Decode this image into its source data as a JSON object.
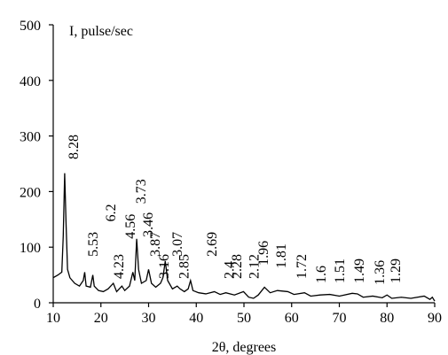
{
  "chart_data": {
    "type": "line",
    "y_label": "I, pulse/sec",
    "x_label": "2θ, degrees",
    "color": "#000000",
    "xlim": [
      10,
      90
    ],
    "xticks": [
      10,
      20,
      30,
      40,
      50,
      60,
      70,
      80,
      90
    ],
    "ylim": [
      0,
      500
    ],
    "yticks": [
      0,
      100,
      200,
      300,
      400,
      500
    ],
    "x": [
      10,
      11,
      11.8,
      12.1,
      12.4,
      12.7,
      13.0,
      13.5,
      14.5,
      15.5,
      16.3,
      16.6,
      16.9,
      17.8,
      18.3,
      18.6,
      19.5,
      20.5,
      21.5,
      22.6,
      23.3,
      24.4,
      25.0,
      26.0,
      26.7,
      27.1,
      27.5,
      27.9,
      28.5,
      29.5,
      30.0,
      30.6,
      31.5,
      32.5,
      33.0,
      33.5,
      34.0,
      35.0,
      36.0,
      36.6,
      37.5,
      38.3,
      38.8,
      39.3,
      40.5,
      42,
      43.8,
      45,
      46.2,
      48,
      49.9,
      51,
      52,
      53,
      54.3,
      55.5,
      57,
      59.2,
      60.5,
      62.7,
      64,
      66,
      68,
      70,
      72.7,
      73.8,
      75,
      77,
      79,
      80,
      81,
      83,
      85,
      87.8,
      89,
      89.5,
      90
    ],
    "values": [
      45,
      50,
      55,
      120,
      233,
      140,
      60,
      45,
      35,
      30,
      40,
      55,
      30,
      28,
      50,
      30,
      22,
      20,
      25,
      35,
      20,
      30,
      22,
      30,
      55,
      40,
      115,
      60,
      35,
      40,
      60,
      35,
      28,
      35,
      45,
      75,
      40,
      25,
      30,
      25,
      20,
      25,
      40,
      22,
      18,
      16,
      20,
      15,
      18,
      14,
      20,
      10,
      8,
      14,
      28,
      18,
      22,
      20,
      15,
      18,
      12,
      14,
      15,
      12,
      17,
      16,
      10,
      12,
      9,
      14,
      8,
      10,
      8,
      12,
      6,
      10,
      3
    ],
    "annotations": [
      {
        "text": "8.28",
        "x": 14.1,
        "y": 258
      },
      {
        "text": "6.2",
        "x": 21.9,
        "y": 146
      },
      {
        "text": "5.53",
        "x": 18.2,
        "y": 83
      },
      {
        "text": "4.56",
        "x": 26.0,
        "y": 115
      },
      {
        "text": "4.23",
        "x": 23.6,
        "y": 43
      },
      {
        "text": "3.87",
        "x": 31.2,
        "y": 83
      },
      {
        "text": "3.73",
        "x": 28.2,
        "y": 178
      },
      {
        "text": "3.46",
        "x": 29.7,
        "y": 118
      },
      {
        "text": "3.16",
        "x": 33.1,
        "y": 43
      },
      {
        "text": "3.07",
        "x": 35.9,
        "y": 83
      },
      {
        "text": "2.85",
        "x": 37.3,
        "y": 43
      },
      {
        "text": "2.69",
        "x": 43.1,
        "y": 83
      },
      {
        "text": "2.4",
        "x": 46.7,
        "y": 43
      },
      {
        "text": "2.28",
        "x": 48.3,
        "y": 43
      },
      {
        "text": "2.12",
        "x": 52.0,
        "y": 43
      },
      {
        "text": "1.96",
        "x": 53.9,
        "y": 67
      },
      {
        "text": "1.81",
        "x": 57.6,
        "y": 62
      },
      {
        "text": "1.72",
        "x": 61.9,
        "y": 43
      },
      {
        "text": "1.6",
        "x": 66.0,
        "y": 35
      },
      {
        "text": "1.51",
        "x": 69.9,
        "y": 35
      },
      {
        "text": "1.49",
        "x": 74.0,
        "y": 35
      },
      {
        "text": "1.36",
        "x": 78.3,
        "y": 32
      },
      {
        "text": "1.29",
        "x": 81.6,
        "y": 35
      }
    ]
  }
}
